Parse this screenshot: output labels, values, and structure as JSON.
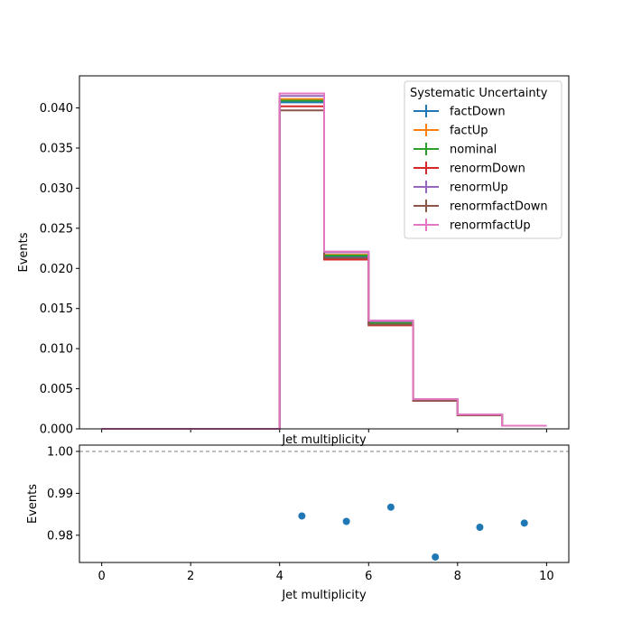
{
  "chart_data": [
    {
      "type": "line",
      "panel": "main",
      "xlabel": "Jet multiplicity",
      "ylabel": "Events",
      "xlim": [
        -0.5,
        10.5
      ],
      "ylim": [
        0,
        0.044
      ],
      "xticks": [
        0,
        2,
        4,
        6,
        8,
        10
      ],
      "xtick_labels_shown": false,
      "yticks": [
        0.0,
        0.005,
        0.01,
        0.015,
        0.02,
        0.025,
        0.03,
        0.035,
        0.04
      ],
      "ytick_labels": [
        "0.000",
        "0.005",
        "0.010",
        "0.015",
        "0.020",
        "0.025",
        "0.030",
        "0.035",
        "0.040"
      ],
      "grid": false,
      "legend": {
        "title": "Systematic Uncertainty",
        "placement": "top-right"
      },
      "bin_edges": [
        0,
        1,
        2,
        3,
        4,
        5,
        6,
        7,
        8,
        9,
        10
      ],
      "series": [
        {
          "name": "factDown",
          "color": "#1f77b4",
          "values": [
            0,
            0,
            0,
            0,
            0.0407,
            0.0214,
            0.0131,
            0.0036,
            0.0018,
            0.0004
          ]
        },
        {
          "name": "factUp",
          "color": "#ff7f0e",
          "values": [
            0,
            0,
            0,
            0,
            0.0411,
            0.0217,
            0.0133,
            0.0036,
            0.0018,
            0.0004
          ]
        },
        {
          "name": "nominal",
          "color": "#2ca02c",
          "values": [
            0,
            0,
            0,
            0,
            0.0409,
            0.0216,
            0.0132,
            0.0036,
            0.0018,
            0.0004
          ]
        },
        {
          "name": "renormDown",
          "color": "#d62728",
          "values": [
            0,
            0,
            0,
            0,
            0.0402,
            0.0211,
            0.0129,
            0.0035,
            0.0017,
            0.0004
          ]
        },
        {
          "name": "renormUp",
          "color": "#9467bd",
          "values": [
            0,
            0,
            0,
            0,
            0.0415,
            0.022,
            0.0134,
            0.0037,
            0.0018,
            0.0004
          ]
        },
        {
          "name": "renormfactDown",
          "color": "#8c564b",
          "values": [
            0,
            0,
            0,
            0,
            0.0397,
            0.0213,
            0.013,
            0.0035,
            0.0017,
            0.0004
          ]
        },
        {
          "name": "renormfactUp",
          "color": "#e377c2",
          "values": [
            0,
            0,
            0,
            0,
            0.0418,
            0.0221,
            0.0135,
            0.0037,
            0.0018,
            0.0004
          ]
        }
      ]
    },
    {
      "type": "scatter",
      "panel": "ratio",
      "xlabel": "Jet multiplicity",
      "ylabel": "Events",
      "xlim": [
        -0.5,
        10.5
      ],
      "ylim": [
        0.9735,
        1.0015
      ],
      "xticks": [
        0,
        2,
        4,
        6,
        8,
        10
      ],
      "xtick_labels": [
        "0",
        "2",
        "4",
        "6",
        "8",
        "10"
      ],
      "yticks": [
        0.98,
        0.99,
        1.0
      ],
      "ytick_labels": [
        "0.98",
        "0.99",
        "1.00"
      ],
      "reference_line": 1.0,
      "grid": false,
      "color": "#1f77b4",
      "x": [
        4.5,
        5.5,
        6.5,
        7.5,
        8.5,
        9.5
      ],
      "y": [
        0.9846,
        0.9833,
        0.9867,
        0.9748,
        0.9819,
        0.9829
      ]
    }
  ]
}
